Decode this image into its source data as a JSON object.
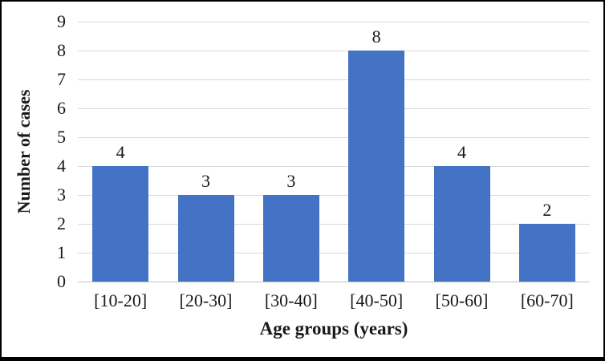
{
  "chart_data": {
    "type": "bar",
    "title": "",
    "categories": [
      "[10-20]",
      "[20-30]",
      "[30-40]",
      "[40-50]",
      "[50-60]",
      "[60-70]"
    ],
    "values": [
      4,
      3,
      3,
      8,
      4,
      2
    ],
    "data_labels": [
      "4",
      "3",
      "3",
      "8",
      "4",
      "2"
    ],
    "xlabel": "Age groups (years)",
    "ylabel": "Number of cases",
    "yticks": [
      0,
      1,
      2,
      3,
      4,
      5,
      6,
      7,
      8,
      9
    ],
    "ylim": [
      0,
      9
    ],
    "grid": "horizontal",
    "legend": "none",
    "bar_color": "#4472C4",
    "gridline_color": "#D9D9D9",
    "axis_line_color": "#C0C0C0",
    "text_color": "#1A1A1A",
    "frame_color": "#000000"
  }
}
